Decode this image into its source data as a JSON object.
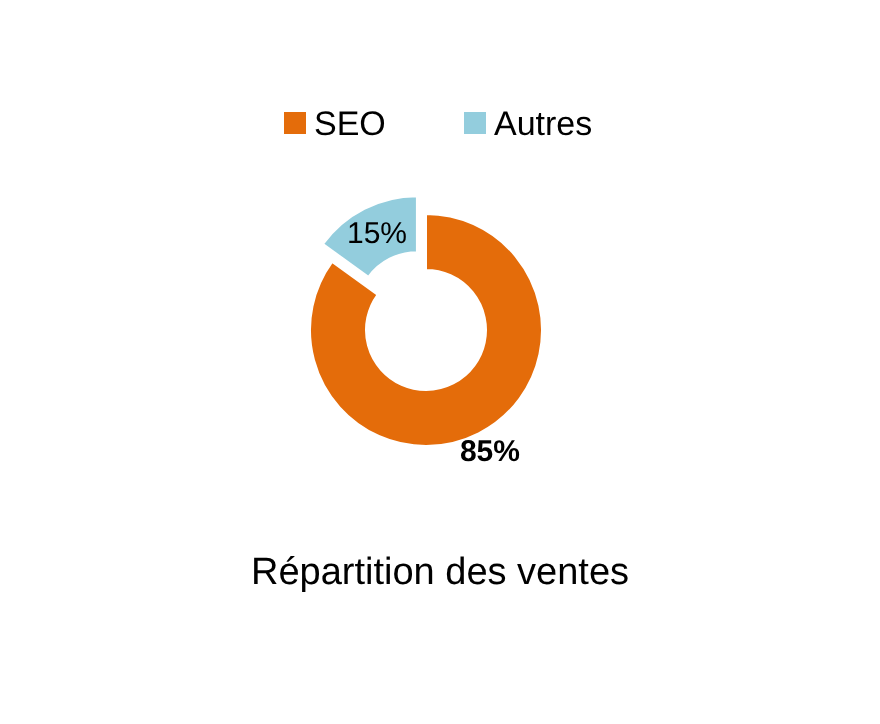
{
  "chart_data": {
    "type": "donut",
    "title": "Répartition des ventes",
    "categories": [
      "SEO",
      "Autres"
    ],
    "values": [
      85,
      15
    ],
    "colors": [
      "#e46c0a",
      "#93cddd"
    ],
    "value_labels": [
      "85%",
      "15%"
    ],
    "legend": "top"
  }
}
